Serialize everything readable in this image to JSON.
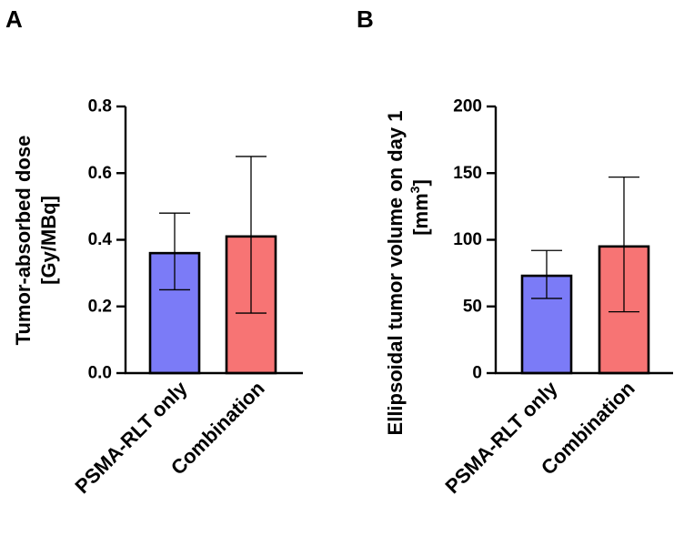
{
  "chart_data": [
    {
      "panel": "A",
      "type": "bar",
      "categories": [
        "PSMA-RLT only",
        "Combination"
      ],
      "values": [
        0.36,
        0.41
      ],
      "error_upper": [
        0.48,
        0.65
      ],
      "error_lower": [
        0.25,
        0.18
      ],
      "ylabel_lines": [
        "Tumor-absorbed dose",
        "[Gy/MBq]"
      ],
      "ylim": [
        0,
        0.8
      ],
      "yticks": [
        "0.0",
        "0.2",
        "0.4",
        "0.6",
        "0.8"
      ],
      "colors": [
        "#7b7bf7",
        "#f77474"
      ],
      "grid": false
    },
    {
      "panel": "B",
      "type": "bar",
      "categories": [
        "PSMA-RLT only",
        "Combination"
      ],
      "values": [
        73,
        95
      ],
      "error_upper": [
        92,
        147
      ],
      "error_lower": [
        56,
        46
      ],
      "ylabel_lines": [
        "Ellipsoidal tumor volume on day 1",
        "[mm",
        "3",
        "]"
      ],
      "ylim": [
        0,
        200
      ],
      "yticks": [
        "0",
        "50",
        "100",
        "150",
        "200"
      ],
      "colors": [
        "#7b7bf7",
        "#f77474"
      ],
      "grid": false
    }
  ]
}
